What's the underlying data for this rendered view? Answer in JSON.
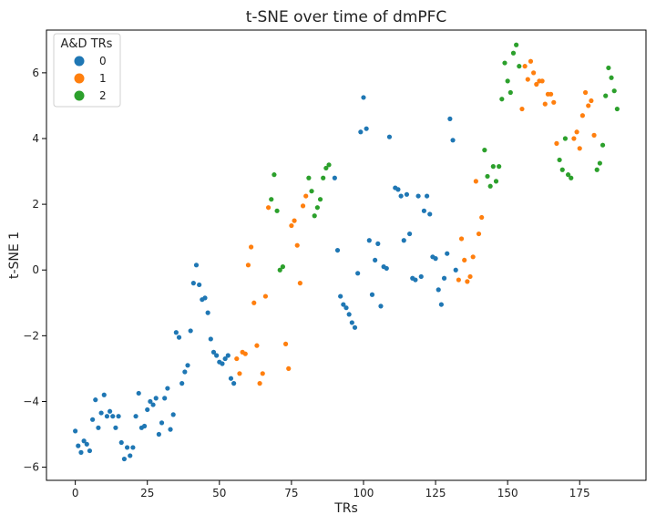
{
  "chart_data": {
    "type": "scatter",
    "title": "t-SNE over time of dmPFC",
    "xlabel": "TRs",
    "ylabel": "t-SNE 1",
    "xlim": [
      -10,
      198
    ],
    "ylim": [
      -6.4,
      7.3
    ],
    "xticks": [
      0,
      25,
      50,
      75,
      100,
      125,
      150,
      175
    ],
    "yticks": [
      -6,
      -4,
      -2,
      0,
      2,
      4,
      6
    ],
    "grid": false,
    "legend": {
      "title": "A&D TRs",
      "placement": "top-left"
    },
    "series": [
      {
        "name": "0",
        "color": "#1f77b4",
        "points": [
          [
            0,
            -4.9
          ],
          [
            1,
            -5.35
          ],
          [
            2,
            -5.55
          ],
          [
            3,
            -5.2
          ],
          [
            4,
            -5.3
          ],
          [
            5,
            -5.5
          ],
          [
            6,
            -4.55
          ],
          [
            7,
            -3.95
          ],
          [
            8,
            -4.8
          ],
          [
            9,
            -4.35
          ],
          [
            10,
            -3.8
          ],
          [
            11,
            -4.45
          ],
          [
            12,
            -4.3
          ],
          [
            13,
            -4.45
          ],
          [
            14,
            -4.8
          ],
          [
            15,
            -4.45
          ],
          [
            16,
            -5.25
          ],
          [
            17,
            -5.75
          ],
          [
            18,
            -5.4
          ],
          [
            19,
            -5.65
          ],
          [
            20,
            -5.4
          ],
          [
            21,
            -4.45
          ],
          [
            22,
            -3.75
          ],
          [
            23,
            -4.8
          ],
          [
            24,
            -4.75
          ],
          [
            25,
            -4.25
          ],
          [
            26,
            -4.0
          ],
          [
            27,
            -4.1
          ],
          [
            28,
            -3.9
          ],
          [
            29,
            -5.0
          ],
          [
            30,
            -4.65
          ],
          [
            31,
            -3.9
          ],
          [
            32,
            -3.6
          ],
          [
            33,
            -4.85
          ],
          [
            34,
            -4.4
          ],
          [
            35,
            -1.9
          ],
          [
            36,
            -2.05
          ],
          [
            37,
            -3.45
          ],
          [
            38,
            -3.1
          ],
          [
            39,
            -2.9
          ],
          [
            40,
            -1.85
          ],
          [
            41,
            -0.4
          ],
          [
            42,
            0.15
          ],
          [
            43,
            -0.45
          ],
          [
            44,
            -0.9
          ],
          [
            45,
            -0.85
          ],
          [
            46,
            -1.3
          ],
          [
            47,
            -2.1
          ],
          [
            48,
            -2.5
          ],
          [
            49,
            -2.6
          ],
          [
            50,
            -2.8
          ],
          [
            51,
            -2.85
          ],
          [
            52,
            -2.7
          ],
          [
            53,
            -2.6
          ],
          [
            54,
            -3.3
          ],
          [
            55,
            -3.45
          ],
          [
            90,
            2.8
          ],
          [
            91,
            0.6
          ],
          [
            92,
            -0.8
          ],
          [
            93,
            -1.05
          ],
          [
            94,
            -1.15
          ],
          [
            95,
            -1.35
          ],
          [
            96,
            -1.6
          ],
          [
            97,
            -1.75
          ],
          [
            98,
            -0.1
          ],
          [
            99,
            4.2
          ],
          [
            100,
            5.25
          ],
          [
            101,
            4.3
          ],
          [
            102,
            0.9
          ],
          [
            103,
            -0.75
          ],
          [
            104,
            0.3
          ],
          [
            105,
            0.8
          ],
          [
            106,
            -1.1
          ],
          [
            107,
            0.1
          ],
          [
            108,
            0.05
          ],
          [
            109,
            4.05
          ],
          [
            111,
            2.5
          ],
          [
            112,
            2.45
          ],
          [
            113,
            2.25
          ],
          [
            114,
            0.9
          ],
          [
            115,
            2.3
          ],
          [
            116,
            1.1
          ],
          [
            117,
            -0.25
          ],
          [
            118,
            -0.3
          ],
          [
            119,
            2.25
          ],
          [
            120,
            -0.2
          ],
          [
            121,
            1.8
          ],
          [
            122,
            2.25
          ],
          [
            123,
            1.7
          ],
          [
            124,
            0.4
          ],
          [
            125,
            0.35
          ],
          [
            126,
            -0.6
          ],
          [
            127,
            -1.05
          ],
          [
            128,
            -0.25
          ],
          [
            129,
            0.5
          ],
          [
            130,
            4.6
          ],
          [
            131,
            3.95
          ],
          [
            132,
            0.0
          ]
        ]
      },
      {
        "name": "1",
        "color": "#ff7f0e",
        "points": [
          [
            56,
            -2.7
          ],
          [
            57,
            -3.15
          ],
          [
            58,
            -2.5
          ],
          [
            59,
            -2.55
          ],
          [
            60,
            0.15
          ],
          [
            61,
            0.7
          ],
          [
            62,
            -1.0
          ],
          [
            63,
            -2.3
          ],
          [
            64,
            -3.45
          ],
          [
            65,
            -3.15
          ],
          [
            66,
            -0.8
          ],
          [
            67,
            1.9
          ],
          [
            73,
            -2.25
          ],
          [
            74,
            -3.0
          ],
          [
            75,
            1.35
          ],
          [
            76,
            1.5
          ],
          [
            77,
            0.75
          ],
          [
            78,
            -0.4
          ],
          [
            79,
            1.95
          ],
          [
            80,
            2.25
          ],
          [
            133,
            -0.3
          ],
          [
            134,
            0.95
          ],
          [
            135,
            0.3
          ],
          [
            136,
            -0.35
          ],
          [
            137,
            -0.2
          ],
          [
            138,
            0.4
          ],
          [
            139,
            2.7
          ],
          [
            140,
            1.1
          ],
          [
            141,
            1.6
          ],
          [
            155,
            4.9
          ],
          [
            156,
            6.2
          ],
          [
            157,
            5.8
          ],
          [
            158,
            6.35
          ],
          [
            159,
            6.0
          ],
          [
            160,
            5.65
          ],
          [
            161,
            5.75
          ],
          [
            162,
            5.75
          ],
          [
            163,
            5.05
          ],
          [
            164,
            5.35
          ],
          [
            165,
            5.35
          ],
          [
            166,
            5.1
          ],
          [
            167,
            3.85
          ],
          [
            173,
            4.0
          ],
          [
            174,
            4.2
          ],
          [
            175,
            3.7
          ],
          [
            176,
            4.7
          ],
          [
            177,
            5.4
          ],
          [
            178,
            5.0
          ],
          [
            179,
            5.15
          ],
          [
            180,
            4.1
          ]
        ]
      },
      {
        "name": "2",
        "color": "#2ca02c",
        "points": [
          [
            68,
            2.15
          ],
          [
            69,
            2.9
          ],
          [
            70,
            1.8
          ],
          [
            71,
            0.0
          ],
          [
            72,
            0.1
          ],
          [
            81,
            2.8
          ],
          [
            82,
            2.4
          ],
          [
            83,
            1.65
          ],
          [
            84,
            1.9
          ],
          [
            85,
            2.15
          ],
          [
            86,
            2.8
          ],
          [
            87,
            3.1
          ],
          [
            88,
            3.2
          ],
          [
            142,
            3.65
          ],
          [
            143,
            2.85
          ],
          [
            144,
            2.55
          ],
          [
            145,
            3.15
          ],
          [
            146,
            2.7
          ],
          [
            147,
            3.15
          ],
          [
            148,
            5.2
          ],
          [
            149,
            6.3
          ],
          [
            150,
            5.75
          ],
          [
            151,
            5.4
          ],
          [
            152,
            6.6
          ],
          [
            153,
            6.85
          ],
          [
            154,
            6.2
          ],
          [
            168,
            3.35
          ],
          [
            169,
            3.05
          ],
          [
            170,
            4.0
          ],
          [
            171,
            2.9
          ],
          [
            172,
            2.8
          ],
          [
            181,
            3.05
          ],
          [
            182,
            3.25
          ],
          [
            183,
            3.8
          ],
          [
            184,
            5.3
          ],
          [
            185,
            6.15
          ],
          [
            186,
            5.85
          ],
          [
            187,
            5.45
          ],
          [
            188,
            4.9
          ]
        ]
      }
    ]
  }
}
